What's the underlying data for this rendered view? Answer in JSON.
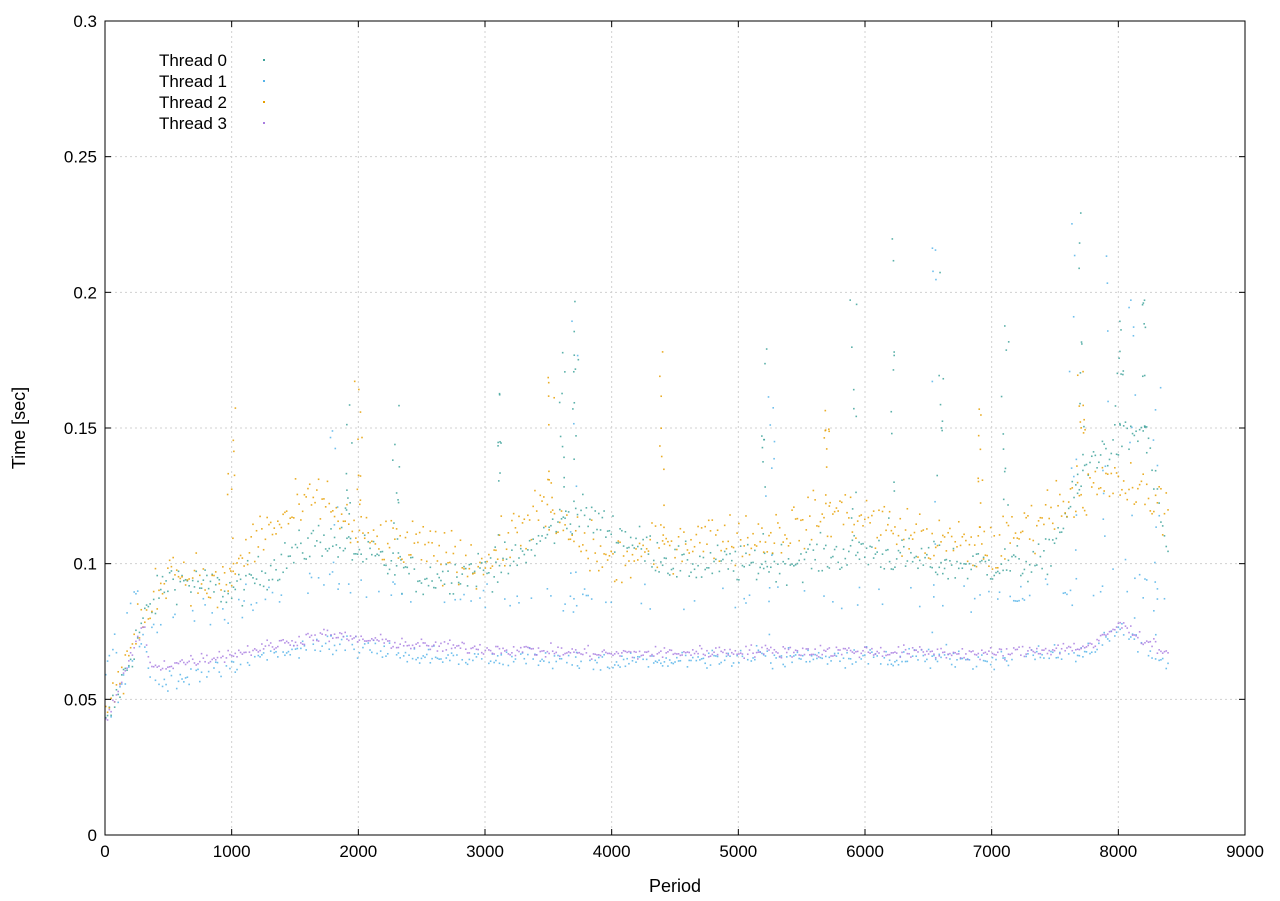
{
  "chart_data": {
    "type": "scatter",
    "title": "",
    "xlabel": "Period",
    "ylabel": "Time [sec]",
    "xlim": [
      0,
      9000
    ],
    "ylim": [
      0,
      0.3
    ],
    "x_ticks": [
      0,
      1000,
      2000,
      3000,
      4000,
      5000,
      6000,
      7000,
      8000,
      9000
    ],
    "x_tick_labels": [
      "0",
      "1000",
      "2000",
      "3000",
      "4000",
      "5000",
      "6000",
      "7000",
      "8000",
      "9000"
    ],
    "y_ticks": [
      0,
      0.05,
      0.1,
      0.15,
      0.2,
      0.25,
      0.3
    ],
    "y_tick_labels": [
      "0",
      "0.05",
      "0.1",
      "0.15",
      "0.2",
      "0.25",
      "0.3"
    ],
    "grid": true,
    "legend_position": "top-left",
    "n_periods": 8400,
    "series": [
      {
        "name": "Thread 0",
        "color": "#3fa39b",
        "summary": "mostly 0.09-0.11 s after period 1000, bursts up to ~0.24 s near periods 7500-8300",
        "trend": [
          [
            0,
            0.04
          ],
          [
            300,
            0.08
          ],
          [
            500,
            0.095
          ],
          [
            1000,
            0.09
          ],
          [
            1700,
            0.11
          ],
          [
            2500,
            0.095
          ],
          [
            3200,
            0.1
          ],
          [
            3700,
            0.12
          ],
          [
            4500,
            0.1
          ],
          [
            5200,
            0.1
          ],
          [
            6000,
            0.105
          ],
          [
            6600,
            0.1
          ],
          [
            7400,
            0.1
          ],
          [
            7800,
            0.14
          ],
          [
            8200,
            0.15
          ],
          [
            8400,
            0.1
          ]
        ],
        "spikes": [
          [
            1900,
            0.16
          ],
          [
            2300,
            0.16
          ],
          [
            3100,
            0.17
          ],
          [
            3600,
            0.18
          ],
          [
            3700,
            0.2
          ],
          [
            5200,
            0.18
          ],
          [
            5900,
            0.2
          ],
          [
            6200,
            0.22
          ],
          [
            6600,
            0.22
          ],
          [
            7100,
            0.19
          ],
          [
            7700,
            0.23
          ],
          [
            8000,
            0.22
          ],
          [
            8200,
            0.2
          ]
        ]
      },
      {
        "name": "Thread 1",
        "color": "#56b4e9",
        "summary": "baseline ~0.065 s with periodic clusters ~0.09 s and spikes to ~0.26 s",
        "trend": [
          [
            0,
            0.04
          ],
          [
            300,
            0.075
          ],
          [
            350,
            0.055
          ],
          [
            1000,
            0.062
          ],
          [
            1700,
            0.072
          ],
          [
            2500,
            0.066
          ],
          [
            3000,
            0.066
          ],
          [
            4000,
            0.064
          ],
          [
            5000,
            0.066
          ],
          [
            6000,
            0.066
          ],
          [
            7000,
            0.065
          ],
          [
            7800,
            0.068
          ],
          [
            8000,
            0.076
          ],
          [
            8400,
            0.064
          ]
        ],
        "spikes": [
          [
            1800,
            0.16
          ],
          [
            3700,
            0.2
          ],
          [
            5250,
            0.18
          ],
          [
            6550,
            0.22
          ],
          [
            7650,
            0.26
          ],
          [
            7900,
            0.24
          ],
          [
            8100,
            0.22
          ],
          [
            8300,
            0.18
          ]
        ]
      },
      {
        "name": "Thread 2",
        "color": "#e69f00",
        "summary": "noisy band centred ~0.11 s, spread 0.08-0.16 s",
        "trend": [
          [
            0,
            0.045
          ],
          [
            300,
            0.08
          ],
          [
            500,
            0.1
          ],
          [
            900,
            0.09
          ],
          [
            1200,
            0.11
          ],
          [
            1700,
            0.125
          ],
          [
            2000,
            0.11
          ],
          [
            2600,
            0.105
          ],
          [
            3000,
            0.1
          ],
          [
            3400,
            0.12
          ],
          [
            4000,
            0.1
          ],
          [
            4600,
            0.11
          ],
          [
            5200,
            0.11
          ],
          [
            5800,
            0.12
          ],
          [
            6400,
            0.11
          ],
          [
            7000,
            0.105
          ],
          [
            7600,
            0.125
          ],
          [
            8000,
            0.13
          ],
          [
            8400,
            0.12
          ]
        ],
        "spikes": [
          [
            1000,
            0.17
          ],
          [
            2000,
            0.17
          ],
          [
            3500,
            0.17
          ],
          [
            4400,
            0.18
          ],
          [
            5700,
            0.16
          ],
          [
            6900,
            0.16
          ],
          [
            7700,
            0.18
          ]
        ]
      },
      {
        "name": "Thread 3",
        "color": "#a97ee0",
        "summary": "tight band ~0.065-0.075 s close to Thread 1 baseline",
        "trend": [
          [
            0,
            0.042
          ],
          [
            300,
            0.078
          ],
          [
            350,
            0.062
          ],
          [
            1000,
            0.067
          ],
          [
            1700,
            0.074
          ],
          [
            2500,
            0.07
          ],
          [
            3000,
            0.069
          ],
          [
            4000,
            0.067
          ],
          [
            5000,
            0.068
          ],
          [
            6000,
            0.068
          ],
          [
            7000,
            0.067
          ],
          [
            7800,
            0.07
          ],
          [
            8000,
            0.078
          ],
          [
            8400,
            0.067
          ]
        ],
        "spikes": []
      }
    ]
  }
}
